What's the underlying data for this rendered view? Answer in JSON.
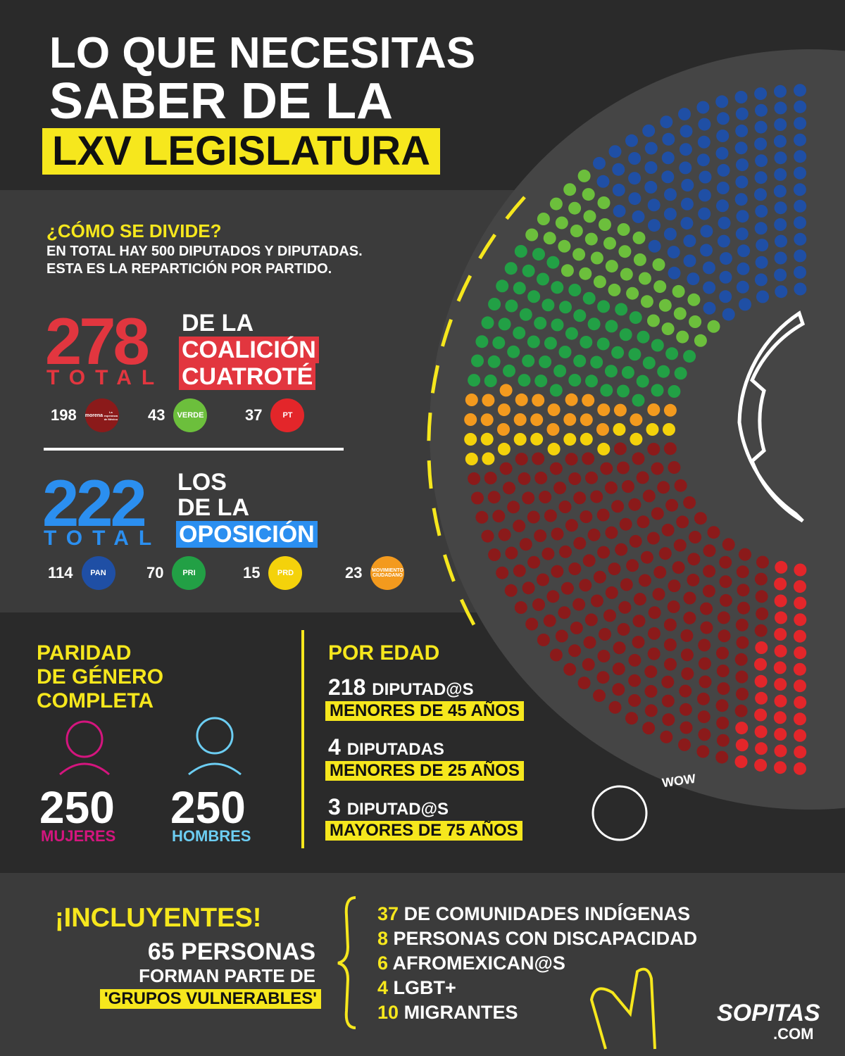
{
  "header": {
    "title_line_1": "LO QUE NECESITAS",
    "title_line_2": "SABER DE LA",
    "title_highlight": "LXV LEGISLATURA"
  },
  "division": {
    "heading": "¿CÓMO SE DIVIDE?",
    "subtitle_line_1": "EN TOTAL HAY 500 DIPUTADOS Y DIPUTADAS.",
    "subtitle_line_2": "ESTA ES LA REPARTICIÓN POR PARTIDO."
  },
  "coalition": {
    "total": 278,
    "total_label": "TOTAL",
    "caption_line_1": "DE LA",
    "highlight_line_1": "COALICIÓN",
    "highlight_line_2": "CUATROTÉ",
    "parties": [
      {
        "seats": 198,
        "logo_text": "morena",
        "logo_subtext": "La esperanza de México",
        "color": "#8b1a1a"
      },
      {
        "seats": 43,
        "logo_text": "VERDE",
        "color": "#6cbf3c"
      },
      {
        "seats": 37,
        "logo_text": "PT",
        "color": "#e3262a"
      }
    ]
  },
  "opposition": {
    "total": 222,
    "total_label": "TOTAL",
    "caption_line_1": "LOS",
    "caption_line_2": "DE LA",
    "highlight_line_1": "OPOSICIÓN",
    "parties": [
      {
        "seats": 114,
        "logo_text": "PAN",
        "color": "#1f4fa5"
      },
      {
        "seats": 70,
        "logo_text": "PRI",
        "color": "#22a045"
      },
      {
        "seats": 15,
        "logo_text": "PRD",
        "color": "#f4d20b"
      },
      {
        "seats": 23,
        "logo_text": "MOVIMIENTO CIUDADANO",
        "color": "#f39a1e"
      }
    ]
  },
  "gender": {
    "heading_line_1": "PARIDAD",
    "heading_line_2": "DE GÉNERO",
    "heading_line_3": "COMPLETA",
    "women": {
      "count": 250,
      "label": "MUJERES"
    },
    "men": {
      "count": 250,
      "label": "HOMBRES"
    }
  },
  "age": {
    "heading": "POR EDAD",
    "items": [
      {
        "count": 218,
        "unit": "DIPUTAD@S",
        "label": "MENORES DE 45 AÑOS"
      },
      {
        "count": 4,
        "unit": "DIPUTADAS",
        "label": "MENORES DE 25 AÑOS"
      },
      {
        "count": 3,
        "unit": "DIPUTAD@S",
        "label": "MAYORES DE 75 AÑOS"
      }
    ],
    "exclamation": "WOW"
  },
  "inclusion": {
    "heading": "¡INCLUYENTES!",
    "total": 65,
    "total_unit": "PERSONAS",
    "caption": "FORMAN PARTE DE",
    "highlight": "'GRUPOS VULNERABLES'",
    "groups": [
      {
        "count": 37,
        "label": "DE COMUNIDADES INDÍGENAS"
      },
      {
        "count": 8,
        "label": "PERSONAS CON DISCAPACIDAD"
      },
      {
        "count": 6,
        "label": "AFROMEXICAN@S"
      },
      {
        "count": 4,
        "label": "LGBT+"
      },
      {
        "count": 10,
        "label": "MIGRANTES"
      }
    ]
  },
  "brand": {
    "name": "SOPITAS",
    "domain": ".COM"
  }
}
